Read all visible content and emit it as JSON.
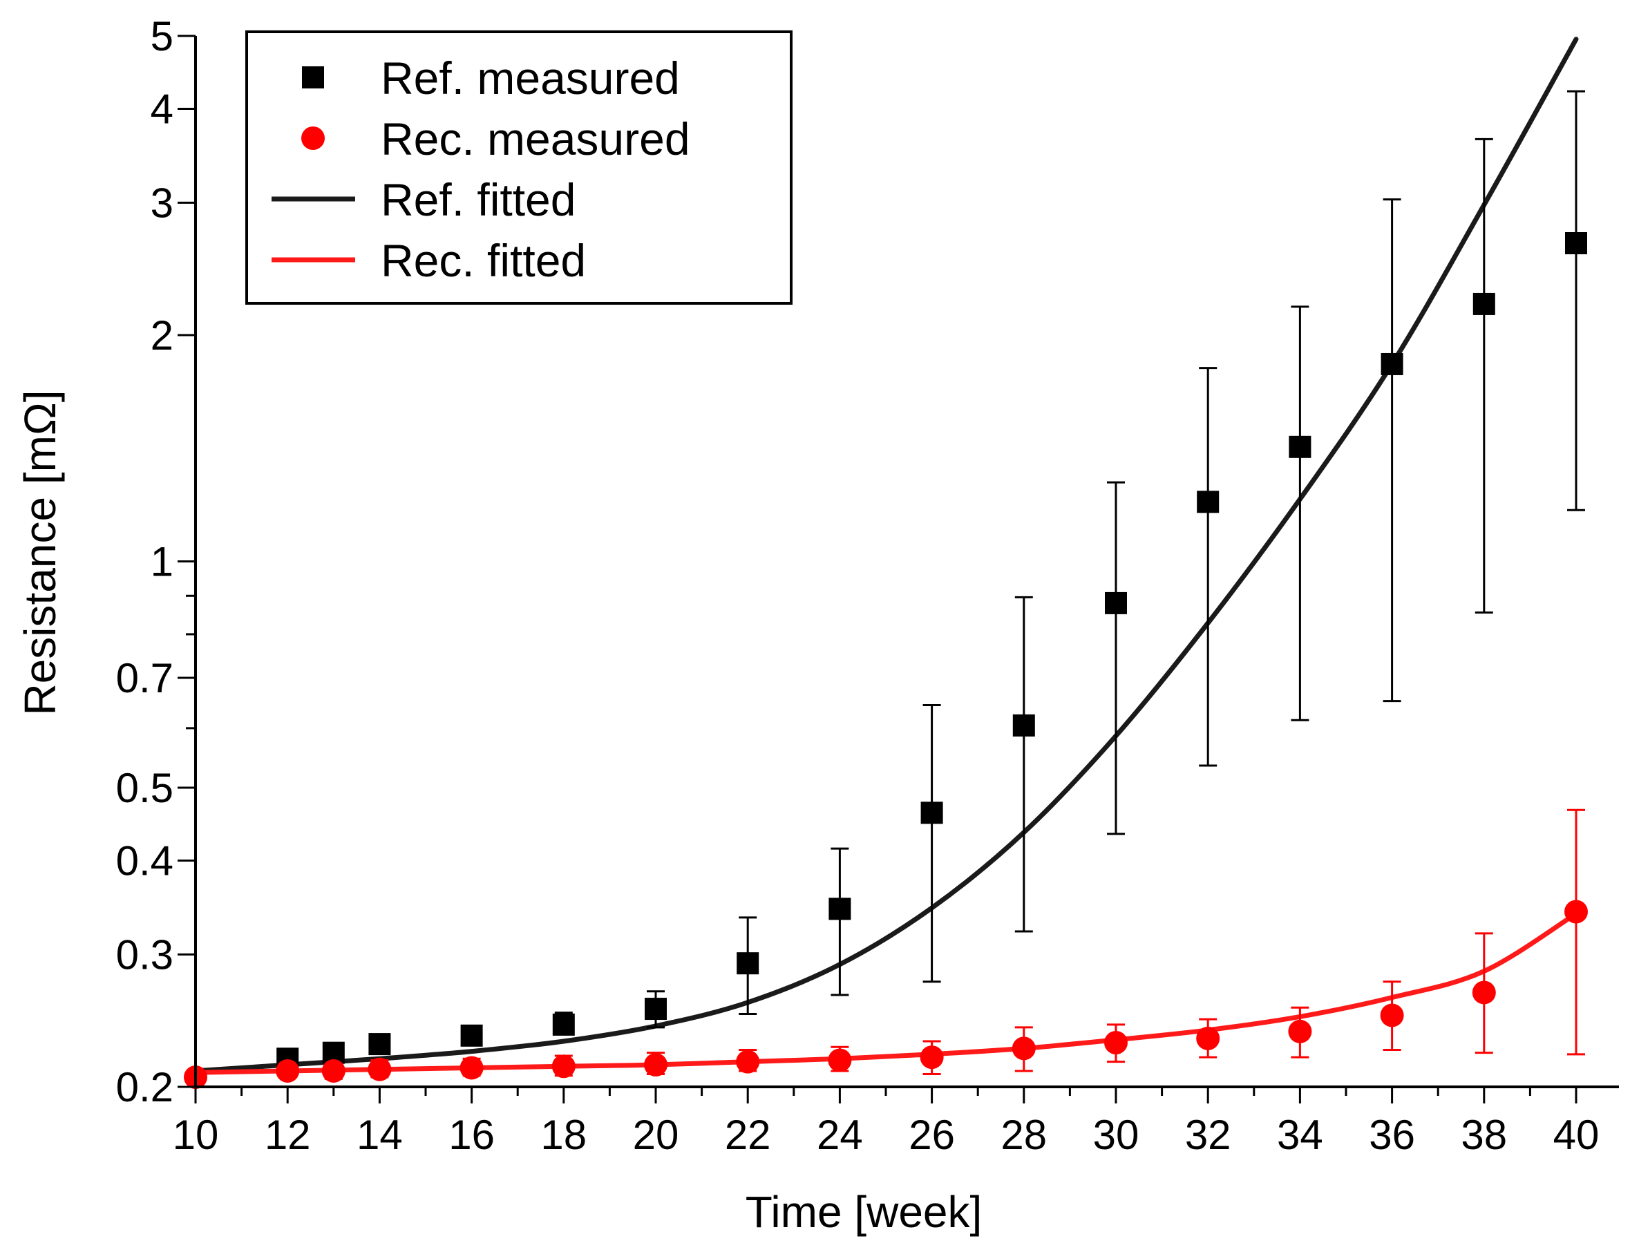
{
  "chart_data": {
    "type": "scatter",
    "title": "",
    "xlabel": "Time [week]",
    "ylabel": "Resistance [mΩ]",
    "xscale": "linear",
    "yscale": "log",
    "xlim": [
      10,
      41
    ],
    "ylim": [
      0.2,
      5
    ],
    "x_ticks": [
      10,
      12,
      14,
      16,
      18,
      20,
      22,
      24,
      26,
      28,
      30,
      32,
      34,
      36,
      38,
      40
    ],
    "x_tick_labels": [
      "10",
      "12",
      "14",
      "16",
      "18",
      "20",
      "22",
      "24",
      "26",
      "28",
      "30",
      "32",
      "34",
      "36",
      "38",
      "40"
    ],
    "y_ticks": [
      0.2,
      0.3,
      0.4,
      0.5,
      0.7,
      1,
      2,
      3,
      4,
      5
    ],
    "y_tick_labels": [
      "0.2",
      "0.3",
      "0.4",
      "0.5",
      "0.7",
      "1",
      "2",
      "3",
      "4",
      "5"
    ],
    "legend_position": "top-left",
    "grid": false,
    "series": [
      {
        "name": "Ref. measured",
        "kind": "points",
        "marker": "square",
        "color": "#000000",
        "x": [
          12,
          13,
          14,
          16,
          18,
          20,
          22,
          24,
          26,
          28,
          30,
          32,
          34,
          36,
          38,
          40
        ],
        "y": [
          0.218,
          0.222,
          0.228,
          0.234,
          0.242,
          0.254,
          0.292,
          0.345,
          0.463,
          0.605,
          0.88,
          1.2,
          1.42,
          1.83,
          2.2,
          2.65
        ],
        "err_low": [
          0.214,
          0.217,
          0.222,
          0.228,
          0.235,
          0.24,
          0.25,
          0.265,
          0.276,
          0.322,
          0.434,
          0.535,
          0.615,
          0.652,
          0.855,
          1.17
        ],
        "err_high": [
          0.222,
          0.228,
          0.234,
          0.24,
          0.251,
          0.268,
          0.336,
          0.415,
          0.644,
          0.896,
          1.274,
          1.808,
          2.182,
          3.03,
          3.645,
          4.22
        ]
      },
      {
        "name": "Rec. measured",
        "kind": "points",
        "marker": "circle",
        "color": "#ff0000",
        "x": [
          10,
          12,
          13,
          14,
          16,
          18,
          20,
          22,
          24,
          26,
          28,
          30,
          32,
          34,
          36,
          38,
          40
        ],
        "y": [
          0.206,
          0.21,
          0.21,
          0.211,
          0.212,
          0.213,
          0.214,
          0.216,
          0.217,
          0.219,
          0.225,
          0.229,
          0.232,
          0.237,
          0.249,
          0.267,
          0.342
        ],
        "err_low": [
          0.203,
          0.206,
          0.205,
          0.206,
          0.207,
          0.207,
          0.208,
          0.21,
          0.21,
          0.208,
          0.21,
          0.216,
          0.219,
          0.219,
          0.224,
          0.222,
          0.221
        ],
        "err_high": [
          0.209,
          0.215,
          0.216,
          0.217,
          0.218,
          0.22,
          0.222,
          0.224,
          0.226,
          0.23,
          0.24,
          0.242,
          0.246,
          0.255,
          0.276,
          0.32,
          0.467
        ]
      },
      {
        "name": "Ref. fitted",
        "kind": "line",
        "color": "#1a1a1a",
        "x": [
          10,
          12,
          14,
          16,
          18,
          20,
          22,
          24,
          26,
          28,
          30,
          32,
          34,
          36,
          38,
          40
        ],
        "y": [
          0.21,
          0.214,
          0.218,
          0.223,
          0.23,
          0.241,
          0.259,
          0.291,
          0.346,
          0.436,
          0.586,
          0.828,
          1.21,
          1.83,
          2.98,
          4.95
        ]
      },
      {
        "name": "Rec. fitted",
        "kind": "line",
        "color": "#ff1a1a",
        "x": [
          10,
          14,
          18,
          20,
          22,
          24,
          26,
          28,
          30,
          32,
          34,
          36,
          38,
          40
        ],
        "y": [
          0.209,
          0.211,
          0.213,
          0.214,
          0.216,
          0.218,
          0.221,
          0.225,
          0.231,
          0.238,
          0.248,
          0.263,
          0.285,
          0.34
        ]
      }
    ]
  }
}
